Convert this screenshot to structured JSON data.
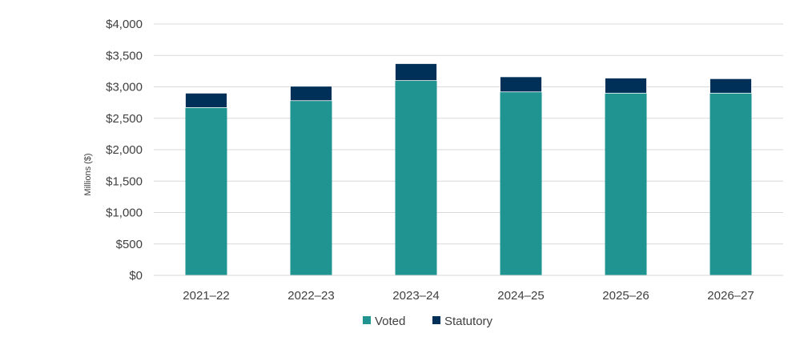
{
  "chart_data": {
    "type": "bar",
    "stacked": true,
    "categories": [
      "2021–22",
      "2022–23",
      "2023–24",
      "2024–25",
      "2025–26",
      "2026–27"
    ],
    "series": [
      {
        "name": "Voted",
        "color": "#1f9490",
        "values": [
          2670,
          2780,
          3100,
          2920,
          2900,
          2900
        ]
      },
      {
        "name": "Statutory",
        "color": "#003057",
        "values": [
          230,
          230,
          270,
          240,
          240,
          230
        ]
      }
    ],
    "title": "",
    "xlabel": "",
    "ylabel": "Millions ($)",
    "ylim": [
      0,
      4000
    ],
    "yticks": [
      "$0",
      "$500",
      "$1,000",
      "$1,500",
      "$2,000",
      "$2,500",
      "$3,000",
      "$3,500",
      "$4,000"
    ],
    "grid": true,
    "legend_position": "bottom"
  }
}
